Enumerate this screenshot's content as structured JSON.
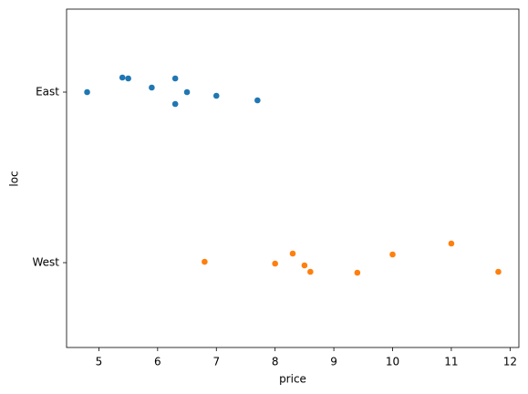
{
  "chart_data": {
    "type": "strip",
    "x_label": "price",
    "y_label": "loc",
    "categories": [
      "East",
      "West"
    ],
    "series": [
      {
        "color": "#1f77b4",
        "values": [
          4.8,
          5.4,
          5.5,
          5.9,
          6.3,
          6.3,
          6.5,
          7.0,
          7.7
        ]
      },
      {
        "color": "#ff7f0e",
        "values": [
          6.8,
          8.0,
          8.3,
          8.5,
          8.6,
          9.4,
          10.0,
          11.0,
          11.8
        ]
      }
    ],
    "xlim": [
      4.45,
      12.15
    ],
    "xticks": [
      5,
      6,
      7,
      8,
      9,
      10,
      11,
      12
    ]
  }
}
